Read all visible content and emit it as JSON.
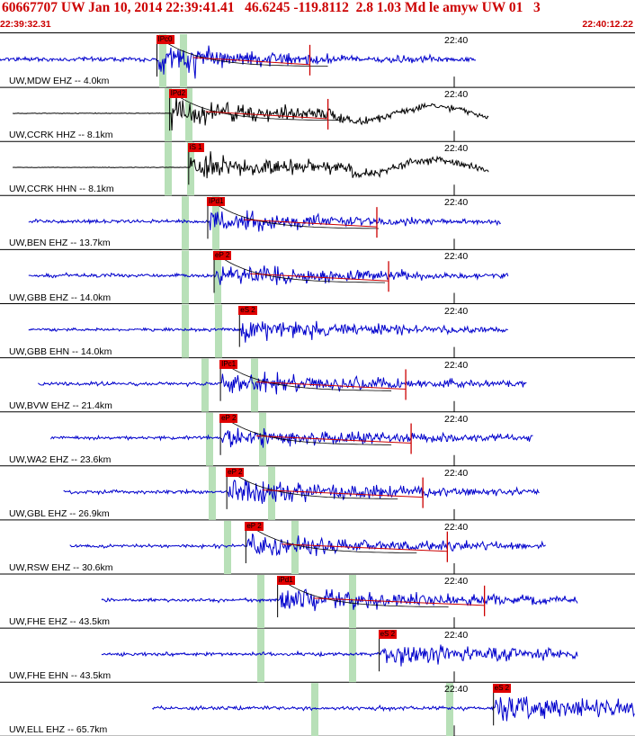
{
  "header": {
    "title": "60667707 UW Jan 10, 2014 22:39:41.41   46.6245 -119.8112  2.8 1.03 Md le amyw UW 01   3",
    "time_start": "22:39:32.31",
    "time_end": "22:40:12.22"
  },
  "tick_label": "22:40",
  "colors": {
    "header_text": "#cc0000",
    "trace_vertical": "#0000cc",
    "trace_broadband": "#000000",
    "pick_box": "#e00000",
    "theoretical_arrival": "#b8e0b8",
    "decay_curve": "#000000",
    "coda_fit": "#cc0000"
  },
  "channels": [
    {
      "label": "UW,MDW EHZ -- 4.0km",
      "pick": "IPc0",
      "color": "blue",
      "amp": 0.95,
      "start": 0.0,
      "end": 0.75,
      "onset": 0.25
    },
    {
      "label": "UW,CCRK HHZ -- 8.1km",
      "pick": "IPd2",
      "color": "black",
      "amp": 0.9,
      "start": 0.02,
      "end": 0.77,
      "onset": 0.27
    },
    {
      "label": "UW,CCRK HHN -- 8.1km",
      "pick": "iS 1",
      "color": "black",
      "amp": 0.85,
      "start": 0.02,
      "end": 0.77,
      "onset": 0.3
    },
    {
      "label": "UW,BEN EHZ -- 13.7km",
      "pick": "IPd1",
      "color": "blue",
      "amp": 0.7,
      "start": 0.045,
      "end": 0.79,
      "onset": 0.33
    },
    {
      "label": "UW,GBB EHZ -- 14.0km",
      "pick": "eP 2",
      "color": "blue",
      "amp": 0.75,
      "start": 0.045,
      "end": 0.8,
      "onset": 0.34
    },
    {
      "label": "UW,GBB EHN -- 14.0km",
      "pick": "eS 2",
      "color": "blue",
      "amp": 0.6,
      "start": 0.045,
      "end": 0.8,
      "onset": 0.38
    },
    {
      "label": "UW,BVW EHZ -- 21.4km",
      "pick": "IPc1",
      "color": "blue",
      "amp": 0.75,
      "start": 0.06,
      "end": 0.83,
      "onset": 0.35
    },
    {
      "label": "UW,WA2 EHZ -- 23.6km",
      "pick": "eP 2",
      "color": "blue",
      "amp": 0.7,
      "start": 0.08,
      "end": 0.84,
      "onset": 0.35
    },
    {
      "label": "UW,GBL EHZ -- 26.9km",
      "pick": "eP 2",
      "color": "blue",
      "amp": 0.75,
      "start": 0.1,
      "end": 0.85,
      "onset": 0.36
    },
    {
      "label": "UW,RSW EHZ -- 30.6km",
      "pick": "eP 2",
      "color": "blue",
      "amp": 0.7,
      "start": 0.11,
      "end": 0.86,
      "onset": 0.39
    },
    {
      "label": "UW,FHE EHZ -- 43.5km",
      "pick": "iPd1",
      "color": "blue",
      "amp": 0.75,
      "start": 0.16,
      "end": 0.91,
      "onset": 0.44
    },
    {
      "label": "UW,FHE EHN -- 43.5km",
      "pick": "eS 2",
      "color": "blue",
      "amp": 0.7,
      "start": 0.16,
      "end": 0.91,
      "onset": 0.6
    },
    {
      "label": "UW,ELL EHZ -- 65.7km",
      "pick": "eS 2",
      "color": "blue",
      "amp": 0.75,
      "start": 0.24,
      "end": 1.0,
      "onset": 0.78
    }
  ]
}
